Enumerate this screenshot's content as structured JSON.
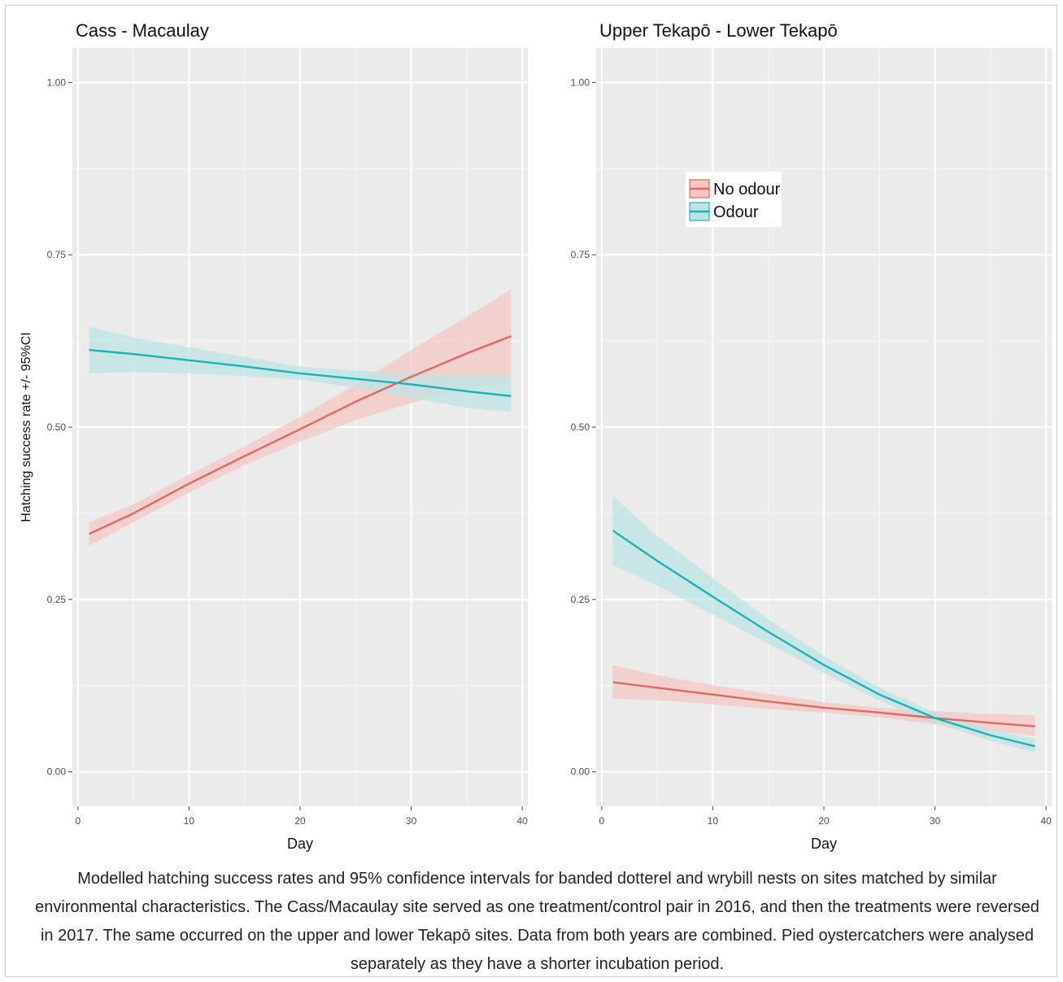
{
  "chart_data": [
    {
      "type": "line",
      "title": "Cass - Macaulay",
      "xlabel": "Day",
      "ylabel": "Hatching success rate +/- 95%CI",
      "xlim": [
        -0.5,
        40.5
      ],
      "ylim": [
        -0.05,
        1.05
      ],
      "xticks": [
        0,
        10,
        20,
        30,
        40
      ],
      "yticks": [
        0.0,
        0.25,
        0.5,
        0.75,
        1.0
      ],
      "ytick_labels": [
        "0.00",
        "0.25",
        "0.50",
        "0.75",
        "1.00"
      ],
      "grid": true,
      "series": [
        {
          "name": "No odour",
          "color": "#e2685f",
          "fill": "#f4c7c3",
          "x": [
            1,
            5,
            10,
            15,
            20,
            25,
            30,
            35,
            39
          ],
          "y": [
            0.345,
            0.375,
            0.418,
            0.458,
            0.497,
            0.537,
            0.573,
            0.607,
            0.632
          ],
          "lower": [
            0.328,
            0.362,
            0.405,
            0.445,
            0.479,
            0.51,
            0.535,
            0.555,
            0.565
          ],
          "upper": [
            0.362,
            0.388,
            0.431,
            0.472,
            0.515,
            0.562,
            0.612,
            0.66,
            0.7
          ]
        },
        {
          "name": "Odour",
          "color": "#17b3b7",
          "fill": "#bde4e4",
          "x": [
            1,
            5,
            10,
            15,
            20,
            25,
            30,
            35,
            39
          ],
          "y": [
            0.612,
            0.606,
            0.597,
            0.588,
            0.578,
            0.57,
            0.562,
            0.552,
            0.545
          ],
          "lower": [
            0.578,
            0.58,
            0.578,
            0.574,
            0.569,
            0.557,
            0.543,
            0.528,
            0.522
          ],
          "upper": [
            0.646,
            0.63,
            0.616,
            0.602,
            0.588,
            0.582,
            0.578,
            0.575,
            0.575
          ]
        }
      ]
    },
    {
      "type": "line",
      "title": "Upper Tekapō - Lower Tekapō",
      "xlabel": "Day",
      "ylabel": "",
      "xlim": [
        -0.5,
        40.5
      ],
      "ylim": [
        -0.05,
        1.05
      ],
      "xticks": [
        0,
        10,
        20,
        30,
        40
      ],
      "yticks": [
        0.0,
        0.25,
        0.5,
        0.75,
        1.0
      ],
      "ytick_labels": [
        "0.00",
        "0.25",
        "0.50",
        "0.75",
        "1.00"
      ],
      "grid": true,
      "legend": {
        "position": "top-left-inside",
        "entries": [
          "No odour",
          "Odour"
        ]
      },
      "series": [
        {
          "name": "No odour",
          "color": "#e2685f",
          "fill": "#f4c7c3",
          "x": [
            1,
            5,
            10,
            15,
            20,
            25,
            30,
            35,
            39
          ],
          "y": [
            0.13,
            0.122,
            0.112,
            0.102,
            0.093,
            0.086,
            0.078,
            0.071,
            0.066
          ],
          "lower": [
            0.106,
            0.104,
            0.098,
            0.091,
            0.086,
            0.079,
            0.069,
            0.06,
            0.052
          ],
          "upper": [
            0.155,
            0.14,
            0.126,
            0.113,
            0.101,
            0.093,
            0.088,
            0.084,
            0.082
          ]
        },
        {
          "name": "Odour",
          "color": "#17b3b7",
          "fill": "#bde4e4",
          "x": [
            1,
            5,
            10,
            15,
            20,
            25,
            30,
            35,
            39
          ],
          "y": [
            0.35,
            0.306,
            0.254,
            0.203,
            0.155,
            0.112,
            0.078,
            0.053,
            0.037
          ],
          "lower": [
            0.3,
            0.27,
            0.228,
            0.186,
            0.143,
            0.103,
            0.07,
            0.045,
            0.028
          ],
          "upper": [
            0.4,
            0.342,
            0.281,
            0.221,
            0.168,
            0.122,
            0.086,
            0.061,
            0.048
          ]
        }
      ]
    }
  ],
  "caption": "Modelled hatching success rates and 95% confidence intervals for banded dotterel and wrybill nests on sites matched by similar environmental characteristics. The Cass/Macaulay site served as one treatment/control pair in 2016, and then the treatments were reversed in 2017. The same occurred on the upper and lower Tekapō sites. Data from both years are combined. Pied oystercatchers were analysed separately as they have a shorter incubation period."
}
